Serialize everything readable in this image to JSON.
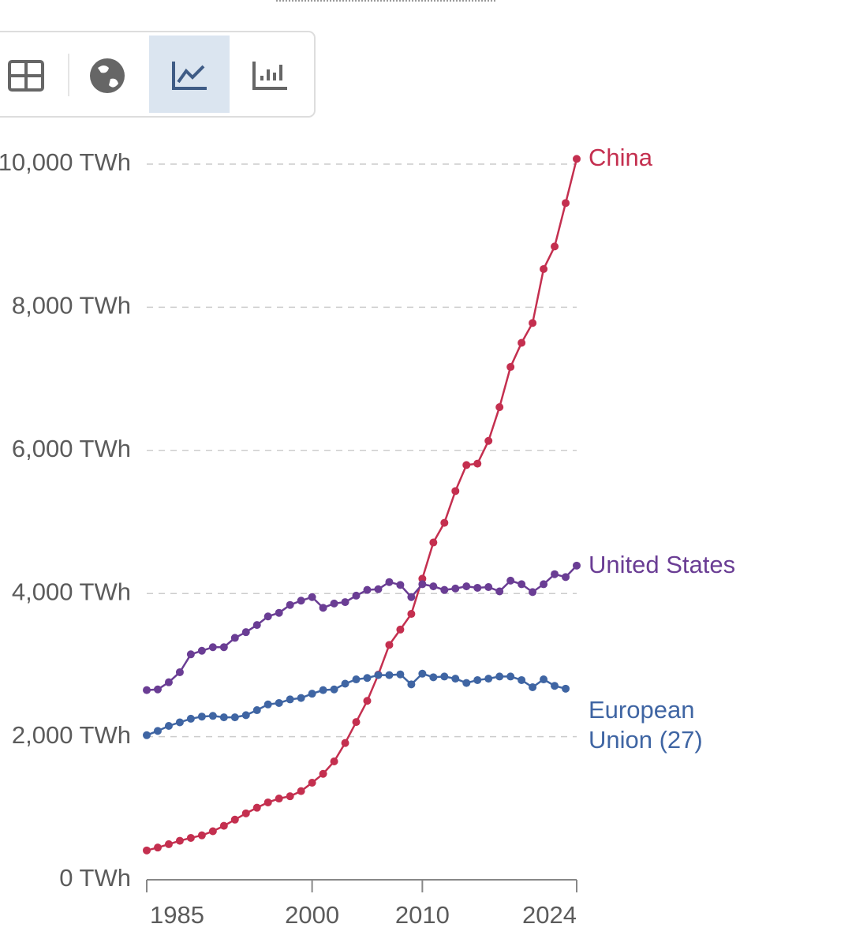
{
  "chart_data": {
    "type": "line",
    "x": [
      1985,
      1986,
      1987,
      1988,
      1989,
      1990,
      1991,
      1992,
      1993,
      1994,
      1995,
      1996,
      1997,
      1998,
      1999,
      2000,
      2001,
      2002,
      2003,
      2004,
      2005,
      2006,
      2007,
      2008,
      2009,
      2010,
      2011,
      2012,
      2013,
      2014,
      2015,
      2016,
      2017,
      2018,
      2019,
      2020,
      2021,
      2022,
      2023,
      2024
    ],
    "xlim": [
      1985,
      2024
    ],
    "xticks": [
      1985,
      2000,
      2010,
      2024
    ],
    "ylim": [
      0,
      10000
    ],
    "yticks": [
      {
        "value": 0,
        "label": "0 TWh"
      },
      {
        "value": 2000,
        "label": "2,000 TWh"
      },
      {
        "value": 4000,
        "label": "4,000 TWh"
      },
      {
        "value": 6000,
        "label": "6,000 TWh"
      },
      {
        "value": 8000,
        "label": "8,000 TWh"
      },
      {
        "value": 10000,
        "label": "10,000 TWh"
      }
    ],
    "grid": true,
    "series": [
      {
        "name": "China",
        "color": "#c42f4f",
        "values": [
          410,
          450,
          497,
          545,
          585,
          621,
          678,
          754,
          840,
          928,
          1007,
          1081,
          1135,
          1167,
          1239,
          1356,
          1480,
          1654,
          1911,
          2204,
          2500,
          2866,
          3282,
          3496,
          3715,
          4207,
          4713,
          4988,
          5432,
          5795,
          5815,
          6133,
          6604,
          7166,
          7503,
          7780,
          8534,
          8849,
          9456,
          10073
        ]
      },
      {
        "name": "United States",
        "color": "#6a3d94",
        "values": [
          2650,
          2660,
          2760,
          2900,
          3150,
          3200,
          3250,
          3250,
          3380,
          3460,
          3560,
          3680,
          3730,
          3840,
          3900,
          3950,
          3800,
          3860,
          3880,
          3970,
          4050,
          4060,
          4160,
          4120,
          3950,
          4130,
          4100,
          4050,
          4070,
          4100,
          4080,
          4090,
          4030,
          4180,
          4130,
          4020,
          4130,
          4270,
          4230,
          4390
        ]
      },
      {
        "name": "European Union (27)",
        "color": "#3f65a3",
        "values": [
          2020,
          2080,
          2150,
          2200,
          2250,
          2280,
          2290,
          2270,
          2270,
          2300,
          2370,
          2450,
          2470,
          2520,
          2540,
          2600,
          2650,
          2660,
          2740,
          2800,
          2820,
          2860,
          2860,
          2870,
          2730,
          2880,
          2830,
          2840,
          2810,
          2750,
          2790,
          2810,
          2840,
          2840,
          2790,
          2690,
          2800,
          2710,
          2670,
          null
        ]
      }
    ]
  }
}
